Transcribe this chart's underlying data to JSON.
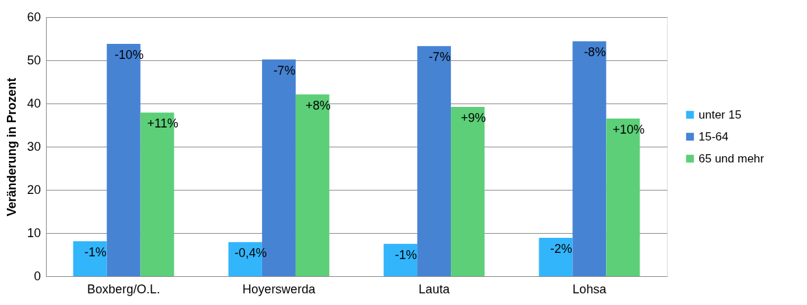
{
  "chart_data": {
    "type": "bar",
    "ylabel": "Veränderung in Prozent",
    "categories": [
      "Boxberg/O.L.",
      "Hoyerswerda",
      "Lauta",
      "Lohsa"
    ],
    "series": [
      {
        "name": "unter 15",
        "color": "#33b5fc",
        "values": [
          8.1,
          7.9,
          7.5,
          8.9
        ]
      },
      {
        "name": "15-64",
        "color": "#4683d3",
        "values": [
          53.8,
          50.2,
          53.3,
          54.4
        ]
      },
      {
        "name": "65 und mehr",
        "color": "#5ccf78",
        "values": [
          37.9,
          42.1,
          39.2,
          36.5
        ]
      }
    ],
    "annotations": [
      "-1%",
      "-0,4%",
      "-1%",
      "-2%",
      "-10%",
      "-7%",
      "-7%",
      "-8%",
      "+11%",
      "+8%",
      "+9%",
      "+10%"
    ],
    "ylim": [
      0,
      60
    ],
    "yticks": [
      0,
      10,
      20,
      30,
      40,
      50,
      60
    ],
    "grid": "y",
    "legend": "right"
  }
}
